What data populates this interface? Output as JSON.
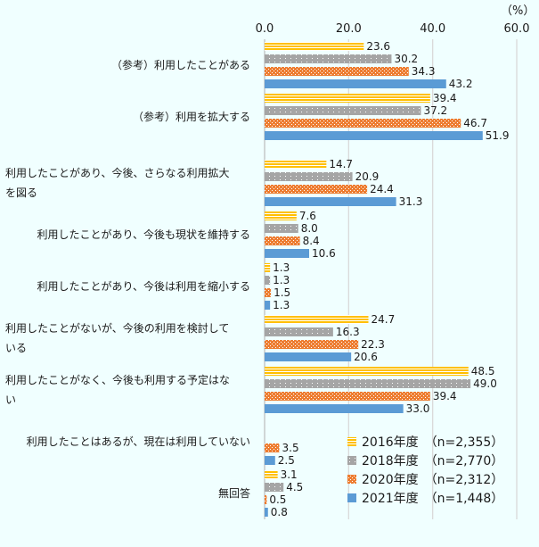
{
  "chart_data": {
    "type": "bar",
    "orientation": "horizontal",
    "unit_label": "（%）",
    "xlim": [
      0,
      60
    ],
    "xticks": [
      "0.0",
      "20.0",
      "40.0",
      "60.0"
    ],
    "grid": true,
    "legend_position": "bottom-right",
    "categories": [
      [
        "（参考）利用したことがある"
      ],
      [
        "（参考）利用を拡大する"
      ],
      [],
      [
        "利用したことがあり、今後、さらなる利用拡大",
        "を図る"
      ],
      [
        "利用したことがあり、今後も現状を維持する"
      ],
      [
        "利用したことがあり、今後は利用を縮小する"
      ],
      [
        "利用したことがないが、今後の利用を検討して",
        "いる"
      ],
      [
        "利用したことがなく、今後も利用する予定はな",
        "い"
      ],
      [
        "利用したことはあるが、現在は利用していない"
      ],
      [
        "無回答"
      ]
    ],
    "series": [
      {
        "name": "2016年度　（n=2,355）",
        "color": "#ffc000",
        "pattern": "hstripes",
        "values": [
          23.6,
          39.4,
          null,
          14.7,
          7.6,
          1.3,
          24.7,
          48.5,
          null,
          3.1
        ]
      },
      {
        "name": "2018年度　（n=2,770）",
        "color": "#a5a5a5",
        "pattern": "dots",
        "values": [
          30.2,
          37.2,
          null,
          20.9,
          8.0,
          1.3,
          16.3,
          49.0,
          null,
          4.5
        ]
      },
      {
        "name": "2020年度　（n=2,312）",
        "color": "#ed7d31",
        "pattern": "bricks",
        "values": [
          34.3,
          46.7,
          null,
          24.4,
          8.4,
          1.5,
          22.3,
          39.4,
          3.5,
          0.5
        ]
      },
      {
        "name": "2021年度　（n=1,448）",
        "color": "#5b9bd5",
        "pattern": "solid",
        "values": [
          43.2,
          51.9,
          null,
          31.3,
          10.6,
          1.3,
          20.6,
          33.0,
          2.5,
          0.8
        ]
      }
    ]
  }
}
